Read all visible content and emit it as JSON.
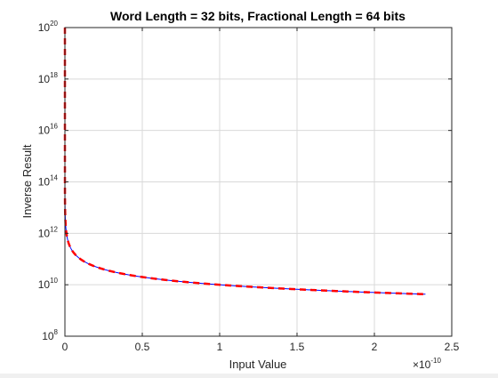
{
  "chart_data": {
    "type": "line",
    "title": "Word Length = 32 bits, Fractional Length = 64 bits",
    "xlabel": "Input Value",
    "ylabel": "Inverse Result",
    "x_multiplier": "×10^{-10}",
    "x_multiplier_base": "×10",
    "x_multiplier_exp": "-10",
    "xlim": [
      0,
      2.5
    ],
    "ylim": [
      100000000.0,
      1e+20
    ],
    "yscale": "log",
    "grid": true,
    "x_ticks": [
      {
        "value": 0,
        "label": "0"
      },
      {
        "value": 0.5,
        "label": "0.5"
      },
      {
        "value": 1,
        "label": "1"
      },
      {
        "value": 1.5,
        "label": "1.5"
      },
      {
        "value": 2,
        "label": "2"
      },
      {
        "value": 2.5,
        "label": "2.5"
      }
    ],
    "y_ticks": [
      {
        "exp": 8,
        "base": "10",
        "sup": "8"
      },
      {
        "exp": 10,
        "base": "10",
        "sup": "10"
      },
      {
        "exp": 12,
        "base": "10",
        "sup": "12"
      },
      {
        "exp": 14,
        "base": "10",
        "sup": "14"
      },
      {
        "exp": 16,
        "base": "10",
        "sup": "16"
      },
      {
        "exp": 18,
        "base": "10",
        "sup": "18"
      },
      {
        "exp": 20,
        "base": "10",
        "sup": "20"
      }
    ],
    "x_range_data": [
      0,
      2.33
    ],
    "series": [
      {
        "color": "#0000ff",
        "style": "solid",
        "function": "1/x"
      },
      {
        "color": "#ff0000",
        "style": "dashed",
        "function": "1/x"
      }
    ]
  }
}
